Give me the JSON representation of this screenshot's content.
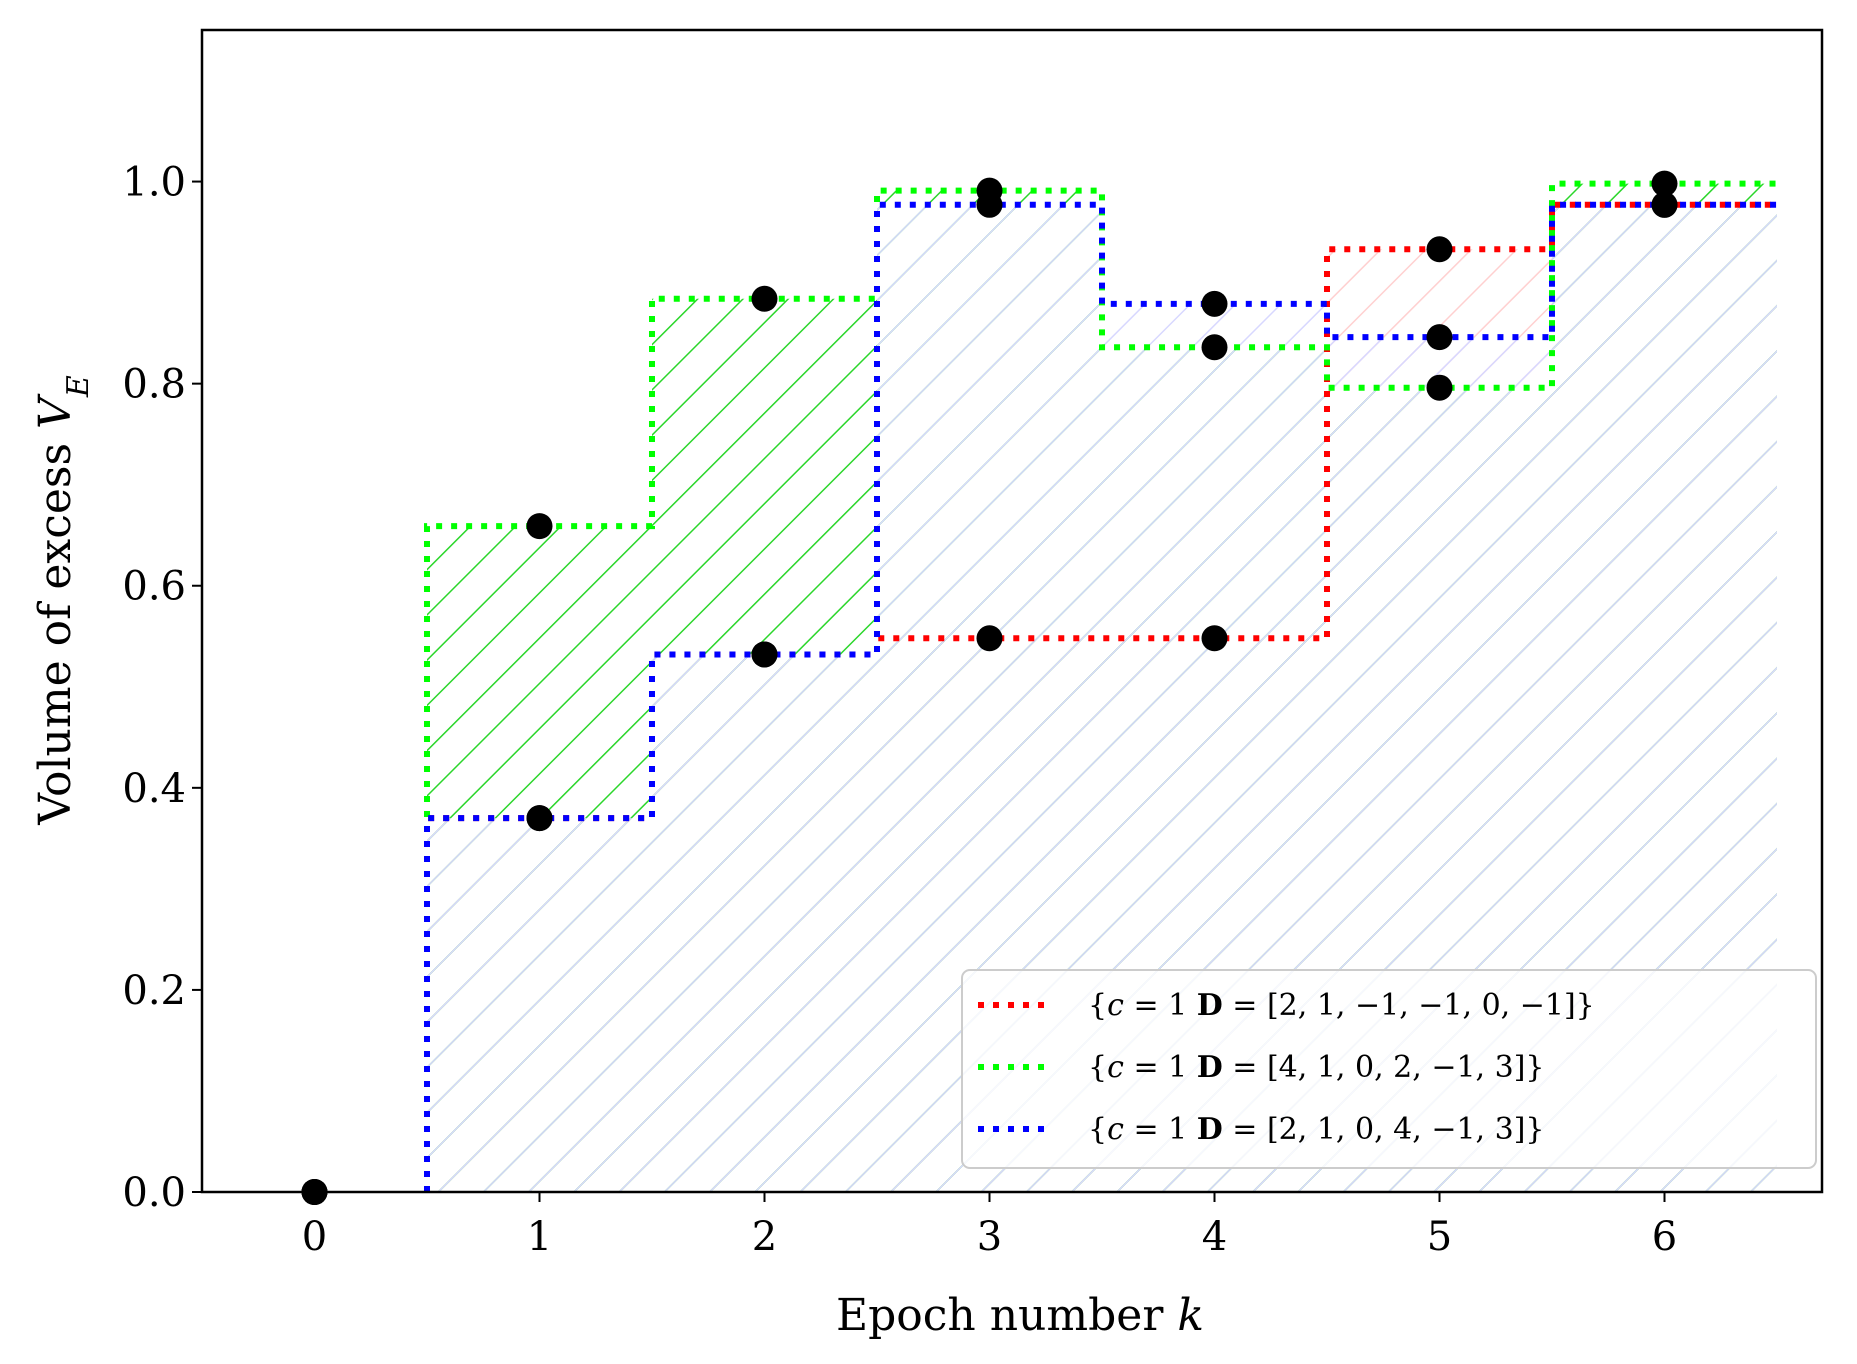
{
  "chart_data": {
    "type": "line",
    "xlabel": "Epoch number k",
    "ylabel": "Volume of excess V_E",
    "xlim": [
      -0.5,
      6.7
    ],
    "ylim": [
      0,
      1.15
    ],
    "x_ticks": [
      "0",
      "1",
      "2",
      "3",
      "4",
      "5",
      "6"
    ],
    "y_ticks": [
      "0.0",
      "0.2",
      "0.4",
      "0.6",
      "0.8",
      "1.0"
    ],
    "grid": false,
    "legend_position": "lower-right",
    "x": [
      0,
      1,
      2,
      3,
      4,
      5,
      6
    ],
    "series": [
      {
        "name": "{c = 1 D = [2, 1, −1, −1, 0, −1]}",
        "color": "#ff0000",
        "values": [
          0,
          0.37,
          0.532,
          0.548,
          0.548,
          0.933,
          0.977
        ]
      },
      {
        "name": "{c = 1 D = [4, 1, 0, 2, −1, 3]}",
        "color": "#00ff00",
        "values": [
          0,
          0.659,
          0.884,
          0.991,
          0.836,
          0.796,
          0.998
        ]
      },
      {
        "name": "{c = 1 D = [2, 1, 0, 4, −1, 3]}",
        "color": "#0000ff",
        "values": [
          0,
          0.37,
          0.532,
          0.977,
          0.879,
          0.846,
          0.977
        ]
      }
    ],
    "fill_hatch_color": "#2bd62b"
  },
  "labels": {
    "xlabel_text": "Epoch number ",
    "xlabel_var": "k",
    "ylabel_text": "Volume of excess ",
    "ylabel_var": "V",
    "ylabel_sub": "E"
  },
  "legend": [
    {
      "prefix": "{",
      "c": "c",
      "eq1": " = 1 ",
      "D": "D",
      "rest": " = [2,  1,  −1,  −1,  0,  −1]}"
    },
    {
      "prefix": "{",
      "c": "c",
      "eq1": " = 1 ",
      "D": "D",
      "rest": " = [4,  1,  0,  2,  −1,  3]}"
    },
    {
      "prefix": "{",
      "c": "c",
      "eq1": " = 1 ",
      "D": "D",
      "rest": " = [2,  1,  0,  4,  −1,  3]}"
    }
  ]
}
